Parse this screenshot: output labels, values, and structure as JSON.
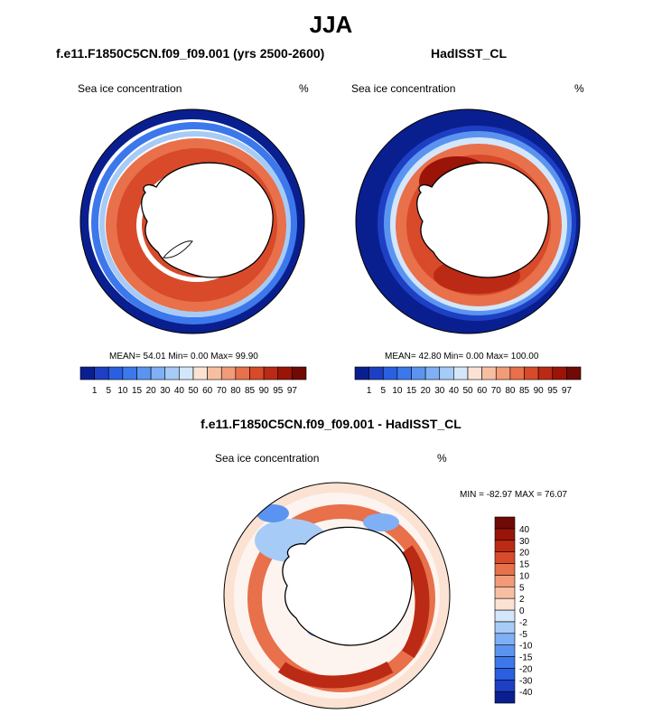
{
  "main_title": "JJA",
  "chart_data": [
    {
      "type": "heatmap",
      "projection": "south-polar-stereographic",
      "title": "f.e11.F1850C5CN.f09_f09.001 (yrs 2500-2600)",
      "left_label": "Sea ice concentration",
      "right_label": "%",
      "stats": {
        "mean": "54.01",
        "min": "0.00",
        "max": "99.90"
      },
      "stats_text": "MEAN=  54.01  Min=   0.00  Max=  99.90",
      "colorbar": {
        "levels": [
          "1",
          "5",
          "10",
          "15",
          "20",
          "30",
          "40",
          "50",
          "60",
          "70",
          "80",
          "85",
          "90",
          "95",
          "97"
        ],
        "colors": [
          "#0a1f8f",
          "#1d3fc4",
          "#2a5fe0",
          "#3c78ec",
          "#5a94f0",
          "#7fb0f5",
          "#a7cbf7",
          "#d4e6fa",
          "#fbe2d3",
          "#f7bfa2",
          "#f19b78",
          "#e8704b",
          "#d84a2a",
          "#bb2a14",
          "#9a1408",
          "#700a04"
        ]
      }
    },
    {
      "type": "heatmap",
      "projection": "south-polar-stereographic",
      "title": "HadISST_CL",
      "left_label": "Sea ice concentration",
      "right_label": "%",
      "stats": {
        "mean": "42.80",
        "min": "0.00",
        "max": "100.00"
      },
      "stats_text": "MEAN=  42.80  Min=   0.00  Max= 100.00",
      "colorbar": {
        "levels": [
          "1",
          "5",
          "10",
          "15",
          "20",
          "30",
          "40",
          "50",
          "60",
          "70",
          "80",
          "85",
          "90",
          "95",
          "97"
        ],
        "colors": [
          "#0a1f8f",
          "#1d3fc4",
          "#2a5fe0",
          "#3c78ec",
          "#5a94f0",
          "#7fb0f5",
          "#a7cbf7",
          "#d4e6fa",
          "#fbe2d3",
          "#f7bfa2",
          "#f19b78",
          "#e8704b",
          "#d84a2a",
          "#bb2a14",
          "#9a1408",
          "#700a04"
        ]
      }
    },
    {
      "type": "heatmap",
      "projection": "south-polar-stereographic",
      "title": "f.e11.F1850C5CN.f09_f09.001 - HadISST_CL",
      "left_label": "Sea ice concentration",
      "right_label": "%",
      "stats": {
        "min": "-82.97",
        "max": "76.07"
      },
      "stats_text": "MIN = -82.97 MAX =  76.07",
      "colorbar": {
        "orientation": "vertical",
        "levels": [
          "-40",
          "-30",
          "-20",
          "-15",
          "-10",
          "-5",
          "-2",
          "0",
          "2",
          "5",
          "10",
          "15",
          "20",
          "30",
          "40"
        ],
        "colors": [
          "#0a1f8f",
          "#1d3fc4",
          "#2a5fe0",
          "#3c78ec",
          "#5a94f0",
          "#7fb0f5",
          "#a7cbf7",
          "#d4e6fa",
          "#fbe2d3",
          "#f7bfa2",
          "#f19b78",
          "#e8704b",
          "#d84a2a",
          "#bb2a14",
          "#9a1408",
          "#700a04"
        ]
      }
    }
  ]
}
